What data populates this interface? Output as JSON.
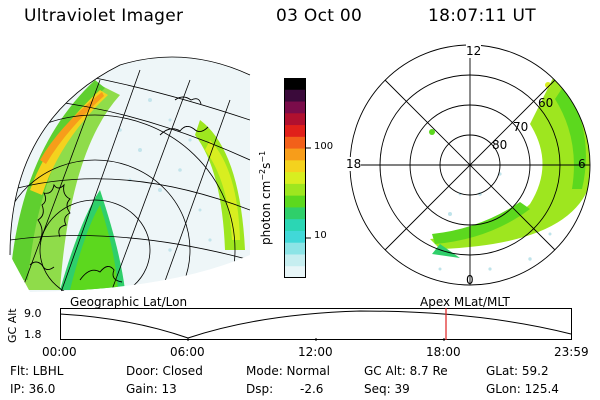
{
  "header": {
    "title": "Ultraviolet Imager",
    "date": "03 Oct 00",
    "time": "18:07:11 UT"
  },
  "colorbar": {
    "unit_label": "photon cm",
    "unit_exp1": "−2",
    "unit_mid": "s",
    "unit_exp2": "−1",
    "ticks": [
      "100",
      "10"
    ],
    "colors": [
      "#000000",
      "#3a0a3a",
      "#7a0c4a",
      "#b0102f",
      "#e0201a",
      "#f2601a",
      "#f79d1a",
      "#f4d21e",
      "#d8ee20",
      "#9ee61f",
      "#5cd81e",
      "#2fcf6a",
      "#2bd6b4",
      "#41d8d8",
      "#8ce4e6",
      "#c6eef0",
      "#e8f6f8"
    ]
  },
  "left_panel": {
    "label": "Geographic Lat/Lon"
  },
  "right_panel": {
    "label": "Apex  MLat/MLT",
    "mlt_labels": {
      "top": "12",
      "left": "18",
      "right": "6",
      "bottom": "0"
    },
    "lat_labels": [
      "60",
      "70",
      "80"
    ]
  },
  "altitude_plot": {
    "ylabel": "GC Alt",
    "yticks": [
      "9.0",
      "1.8"
    ],
    "xticks": [
      "00:00",
      "06:00",
      "12:00",
      "18:00",
      "23:59"
    ],
    "marker_time": "18:07"
  },
  "info_row1": {
    "flt": "Flt: LBHL",
    "door": "Door: Closed",
    "mode": "Mode: Normal",
    "gcalt": "GC Alt: 8.7 Re",
    "glat": "GLat:  59.2"
  },
  "info_row2": {
    "ip": "IP: 36.0",
    "gain": "Gain: 13",
    "dsp_label": "Dsp:",
    "dsp_value": "-2.6",
    "seq": "Seq: 39",
    "glon": "GLon: 125.4"
  }
}
